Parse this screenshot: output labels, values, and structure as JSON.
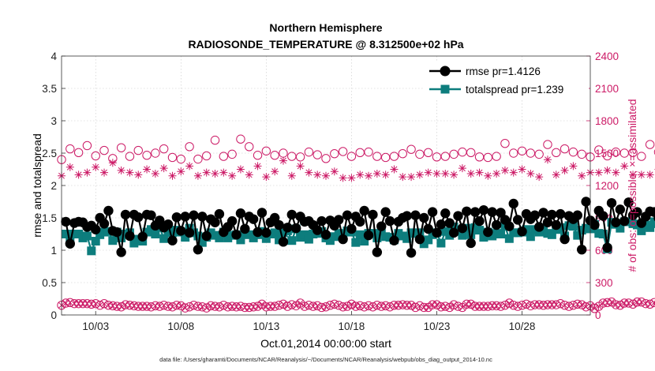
{
  "chart_data": {
    "type": "line",
    "title": "Northern Hemisphere",
    "subtitle": "RADIOSONDE_TEMPERATURE @ 8.312500e+02 hPa",
    "xlabel": "Oct.01,2014 00:00:00 start",
    "ylabel_left": "rmse and totalspread",
    "ylabel_right": "# of obs: o=possible; ×=assimilated",
    "footnote": "data file: /Users/gharamti/Documents/NCAR/Reanalysis/~/Documents/NCAR/Reanalysis/webpub/obs_diag_output_2014-10.nc",
    "xlim": [
      1.0,
      32.0
    ],
    "ylim_left": [
      0,
      4
    ],
    "ylim_right": [
      0,
      2400
    ],
    "x_ticks": [
      {
        "x": 3,
        "label": "10/03"
      },
      {
        "x": 8,
        "label": "10/08"
      },
      {
        "x": 13,
        "label": "10/13"
      },
      {
        "x": 18,
        "label": "10/18"
      },
      {
        "x": 23,
        "label": "10/23"
      },
      {
        "x": 28,
        "label": "10/28"
      }
    ],
    "y_ticks_left": [
      "0",
      "0.5",
      "1",
      "1.5",
      "2",
      "2.5",
      "3",
      "3.5",
      "4"
    ],
    "y_ticks_right": [
      "0",
      "300",
      "600",
      "900",
      "1200",
      "1500",
      "1800",
      "2100",
      "2400"
    ],
    "grid": true,
    "legend_position": "top-right",
    "x_start": 1.25,
    "x_step": 0.25,
    "series": [
      {
        "name": "rmse",
        "legend": "rmse pr=1.4126",
        "axis": "left",
        "color": "#000000",
        "marker": "circle",
        "values": [
          1.44,
          1.1,
          1.42,
          1.44,
          1.43,
          1.36,
          1.38,
          1.32,
          1.5,
          1.41,
          1.61,
          1.3,
          1.28,
          0.97,
          1.55,
          1.22,
          1.55,
          1.51,
          1.21,
          1.55,
          1.54,
          1.38,
          1.46,
          1.35,
          1.4,
          1.15,
          1.51,
          1.3,
          1.52,
          1.27,
          1.54,
          1.01,
          1.52,
          1.22,
          1.48,
          1.43,
          1.56,
          1.28,
          1.36,
          1.45,
          1.24,
          1.57,
          1.33,
          1.52,
          1.48,
          1.28,
          1.58,
          1.27,
          1.43,
          1.5,
          1.39,
          1.13,
          1.35,
          1.55,
          1.34,
          1.52,
          1.44,
          1.45,
          1.39,
          1.31,
          1.45,
          1.24,
          1.46,
          1.38,
          1.47,
          1.17,
          1.54,
          1.33,
          1.52,
          1.44,
          1.61,
          1.23,
          1.55,
          0.97,
          1.37,
          1.59,
          1.45,
          1.15,
          1.44,
          1.5,
          1.53,
          0.96,
          1.54,
          1.17,
          1.5,
          1.33,
          1.59,
          1.27,
          1.4,
          1.57,
          1.42,
          1.27,
          1.53,
          1.34,
          1.6,
          1.11,
          1.59,
          1.45,
          1.62,
          1.28,
          1.59,
          1.39,
          1.58,
          1.47,
          1.37,
          1.72,
          1.47,
          1.29,
          1.56,
          1.48,
          1.54,
          1.36,
          1.58,
          1.43,
          1.55,
          1.39,
          1.56,
          1.17,
          1.53,
          1.48,
          1.54,
          1.01,
          1.75,
          1.46,
          1.39,
          1.61,
          1.53,
          1.04,
          1.73,
          1.43,
          1.63,
          1.45,
          1.74,
          1.54,
          1.59,
          1.42,
          1.52,
          1.6,
          1.59,
          1.5,
          1.64,
          1.57,
          1.71,
          1.58,
          1.6,
          1.48,
          1.43,
          1.47,
          1.44,
          1.37,
          1.5,
          1.44,
          1.55,
          1.36,
          1.54,
          1.21,
          1.48,
          1.42,
          1.37,
          1.33,
          1.53,
          1.38,
          1.49,
          1.11,
          1.5,
          1.35,
          1.44,
          1.47,
          1.4,
          0.75,
          1.43,
          1.36,
          1.39,
          1.22,
          1.6,
          1.58,
          1.56
        ]
      },
      {
        "name": "totalspread",
        "legend": "totalspread pr=1.239",
        "axis": "left",
        "color": "#0d7d7d",
        "marker": "square",
        "values": [
          1.25,
          1.13,
          1.25,
          1.25,
          1.19,
          1.22,
          0.99,
          1.14,
          1.24,
          1.28,
          1.29,
          1.15,
          1.28,
          1.19,
          1.25,
          1.27,
          1.11,
          1.17,
          1.14,
          1.28,
          1.32,
          1.25,
          1.35,
          1.18,
          1.29,
          1.27,
          1.31,
          1.28,
          1.2,
          1.34,
          1.27,
          1.22,
          1.12,
          1.2,
          1.27,
          1.23,
          1.19,
          1.28,
          1.19,
          1.23,
          1.24,
          1.16,
          1.26,
          1.24,
          1.19,
          1.24,
          1.29,
          1.18,
          1.25,
          1.27,
          1.16,
          1.27,
          1.3,
          1.15,
          1.33,
          1.2,
          1.24,
          1.17,
          1.25,
          1.26,
          1.29,
          1.19,
          1.15,
          1.21,
          1.26,
          1.2,
          1.3,
          1.28,
          1.12,
          1.24,
          1.14,
          1.26,
          1.26,
          1.19,
          1.3,
          1.21,
          1.2,
          1.16,
          1.26,
          1.22,
          1.18,
          1.27,
          1.26,
          1.27,
          1.1,
          1.16,
          1.24,
          1.27,
          1.11,
          1.29,
          1.23,
          1.36,
          1.29,
          1.23,
          1.34,
          1.24,
          1.35,
          1.31,
          1.2,
          1.28,
          1.22,
          1.26,
          1.25,
          1.37,
          1.18,
          1.27,
          1.27,
          1.28,
          1.32,
          1.21,
          1.32,
          1.28,
          1.35,
          1.26,
          1.24,
          1.32,
          1.35,
          1.22,
          1.38,
          1.37,
          1.23,
          1.31,
          1.34,
          1.33,
          1.4,
          1.26,
          1.25,
          1.02,
          1.43,
          1.4,
          1.34,
          1.44,
          1.44,
          1.41,
          1.39,
          1.3,
          1.39,
          1.35,
          1.44,
          1.41,
          1.42,
          1.43,
          1.3,
          1.48,
          1.35,
          1.24,
          1.31,
          1.29,
          1.27,
          1.26,
          1.26,
          1.24,
          1.27,
          1.35,
          1.31,
          1.23,
          1.27,
          1.29,
          1.28,
          1.21,
          1.28,
          1.24,
          1.28,
          1.22,
          1.27,
          1.35,
          1.2,
          1.19,
          1.23,
          1.18,
          0.88,
          1.26,
          1.22,
          1.23,
          1.26,
          1.23,
          1.19,
          1.04,
          1.05
        ]
      },
      {
        "name": "obs possible",
        "axis": "right",
        "color": "#cc1a66",
        "marker": "open-circle",
        "x_start": 1.0,
        "x_step": 0.5,
        "values": [
          1440,
          1540,
          1505,
          1570,
          1475,
          1525,
          1450,
          1550,
          1470,
          1525,
          1480,
          1500,
          1540,
          1460,
          1445,
          1560,
          1445,
          1475,
          1620,
          1470,
          1490,
          1630,
          1560,
          1480,
          1520,
          1480,
          1500,
          1470,
          1465,
          1510,
          1485,
          1450,
          1495,
          1515,
          1470,
          1505,
          1510,
          1470,
          1460,
          1470,
          1495,
          1535,
          1490,
          1505,
          1465,
          1470,
          1490,
          1510,
          1505,
          1465,
          1460,
          1470,
          1590,
          1500,
          1520,
          1500,
          1490,
          1580,
          1505,
          1540,
          1510,
          1490,
          1465,
          1530,
          1475,
          1510,
          1500,
          1505,
          1470,
          1580,
          1510,
          1505,
          1515,
          1490,
          1460,
          1650,
          1640,
          1590,
          1640,
          1630,
          1670,
          1610,
          1570,
          1460,
          1560,
          1530,
          1480,
          1560,
          1510,
          1590,
          1530,
          1560,
          1600
        ]
      },
      {
        "name": "obs assimilated",
        "axis": "right",
        "color": "#cc1a66",
        "marker": "asterisk",
        "x_start": 1.0,
        "x_step": 0.5,
        "values": [
          1290,
          1370,
          1300,
          1320,
          1370,
          1320,
          1410,
          1340,
          1320,
          1300,
          1350,
          1310,
          1360,
          1290,
          1330,
          1380,
          1290,
          1320,
          1310,
          1320,
          1290,
          1350,
          1300,
          1380,
          1280,
          1330,
          1430,
          1290,
          1380,
          1320,
          1300,
          1290,
          1330,
          1270,
          1270,
          1300,
          1290,
          1310,
          1300,
          1350,
          1280,
          1280,
          1300,
          1320,
          1310,
          1310,
          1300,
          1360,
          1310,
          1320,
          1290,
          1310,
          1340,
          1320,
          1350,
          1310,
          1280,
          1440,
          1300,
          1340,
          1380,
          1290,
          1320,
          1320,
          1340,
          1320,
          1380,
          1300,
          1300,
          1300,
          1350,
          1250,
          1330,
          1310,
          1300,
          1300,
          1430,
          1370,
          1390,
          1340,
          1410,
          1360,
          1340,
          1380,
          1360,
          1310,
          1340,
          1390,
          1340,
          1360,
          1320,
          1350,
          1350
        ]
      },
      {
        "name": "obs possible (low)",
        "axis": "right",
        "color": "#cc1a66",
        "marker": "open-circle",
        "x_start": 1.0,
        "x_step": 0.25,
        "values": [
          90,
          110,
          115,
          105,
          105,
          105,
          105,
          100,
          105,
          90,
          105,
          90,
          85,
          80,
          75,
          95,
          90,
          85,
          80,
          80,
          80,
          75,
          85,
          80,
          90,
          80,
          75,
          90,
          85,
          65,
          75,
          90,
          80,
          75,
          65,
          85,
          80,
          75,
          90,
          75,
          80,
          75,
          80,
          70,
          70,
          75,
          80,
          100,
          75,
          80,
          80,
          90,
          100,
          80,
          95,
          85,
          110,
          80,
          90,
          80,
          85,
          70,
          75,
          90,
          100,
          90,
          75,
          80,
          100,
          80,
          85,
          75,
          85,
          75,
          90,
          80,
          85,
          75,
          90,
          90,
          95,
          90,
          90,
          70,
          85,
          70,
          70,
          95,
          95,
          75,
          80,
          70,
          95,
          80,
          70,
          100,
          100,
          80,
          80,
          80,
          80,
          85,
          85,
          80,
          90,
          110,
          90,
          80,
          90,
          100,
          85,
          95,
          95,
          90,
          95,
          95,
          95,
          105,
          90,
          80,
          90,
          100,
          95,
          75,
          85,
          60,
          80,
          110,
          115,
          120,
          95,
          90,
          110,
          110,
          100,
          120,
          120,
          105,
          100,
          115,
          110,
          115,
          110,
          120,
          115,
          95,
          105,
          105,
          100,
          90,
          95,
          0
        ]
      },
      {
        "name": "obs assimilated (low)",
        "axis": "right",
        "color": "#cc1a66",
        "marker": "cross",
        "x_start": 1.0,
        "x_step": 0.25,
        "values": [
          90,
          110,
          115,
          105,
          105,
          105,
          105,
          100,
          105,
          90,
          105,
          90,
          85,
          80,
          75,
          95,
          90,
          85,
          80,
          80,
          80,
          75,
          85,
          80,
          90,
          80,
          75,
          90,
          85,
          65,
          75,
          90,
          80,
          75,
          65,
          85,
          80,
          75,
          90,
          75,
          80,
          75,
          80,
          70,
          70,
          75,
          80,
          100,
          75,
          80,
          80,
          90,
          100,
          80,
          95,
          85,
          110,
          80,
          90,
          80,
          85,
          70,
          75,
          90,
          100,
          90,
          75,
          80,
          100,
          80,
          85,
          75,
          85,
          75,
          90,
          80,
          85,
          75,
          90,
          90,
          95,
          90,
          90,
          70,
          85,
          70,
          70,
          95,
          95,
          75,
          80,
          70,
          95,
          80,
          70,
          100,
          100,
          80,
          80,
          80,
          80,
          85,
          85,
          80,
          90,
          110,
          90,
          80,
          90,
          100,
          85,
          95,
          95,
          90,
          95,
          95,
          95,
          105,
          90,
          80,
          90,
          100,
          95,
          75,
          85,
          60,
          80,
          110,
          115,
          120,
          95,
          90,
          110,
          110,
          100,
          120,
          120,
          105,
          100,
          115,
          110,
          115,
          110,
          120,
          115,
          95,
          105,
          105,
          100,
          90,
          95,
          0
        ]
      }
    ]
  }
}
